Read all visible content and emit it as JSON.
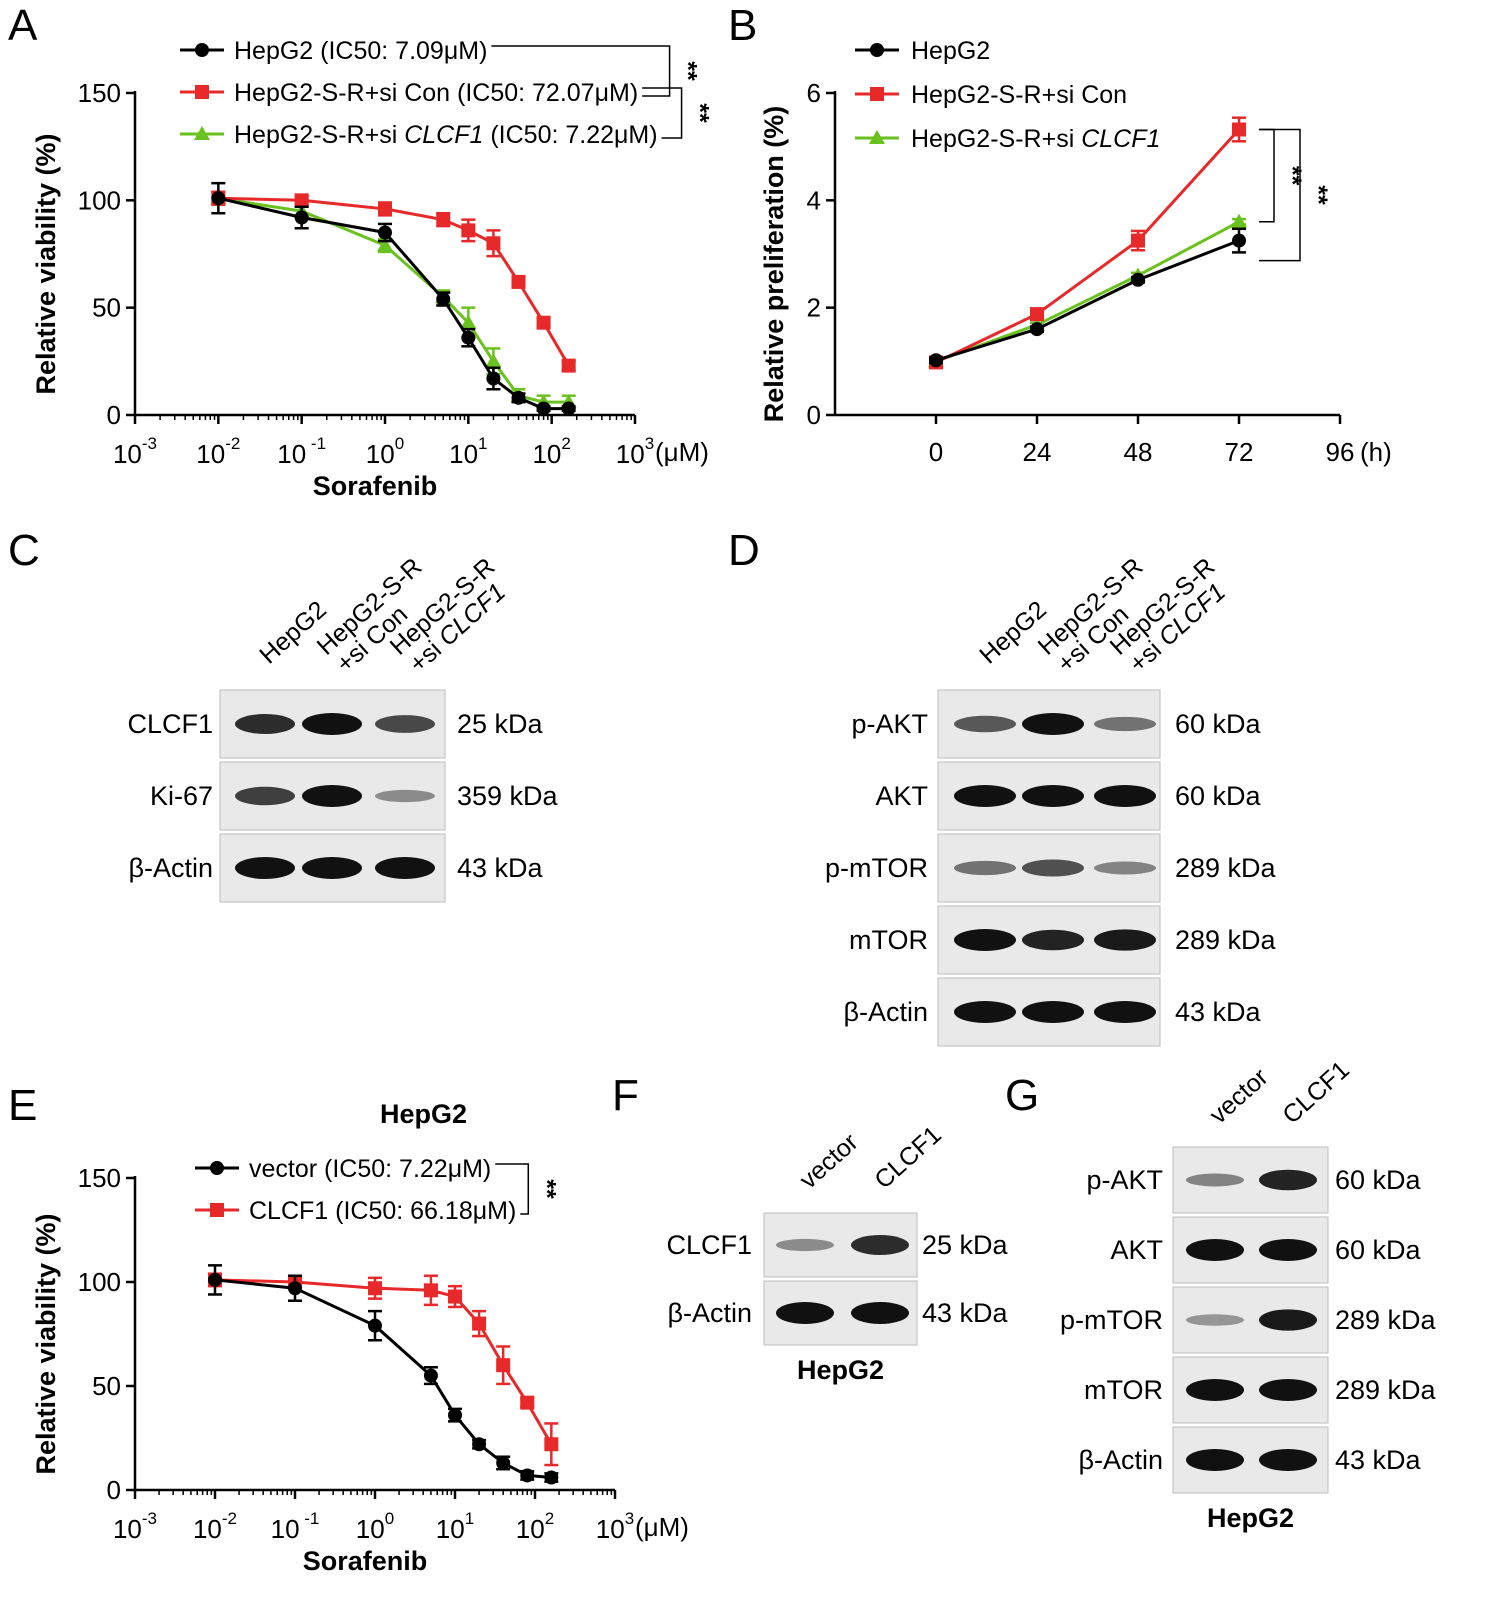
{
  "panels": [
    {
      "id": "A",
      "letter": "A"
    },
    {
      "id": "B",
      "letter": "B"
    },
    {
      "id": "C",
      "letter": "C"
    },
    {
      "id": "D",
      "letter": "D"
    },
    {
      "id": "E",
      "letter": "E"
    },
    {
      "id": "F",
      "letter": "F"
    },
    {
      "id": "G",
      "letter": "G"
    }
  ],
  "colors": {
    "black": "#000000",
    "red": "#e8292a",
    "green": "#6ac21e",
    "band": "#111111"
  },
  "chart_data": [
    {
      "id": "A",
      "type": "line",
      "x_scale": "log",
      "ylabel": "Relative viability (%)",
      "xlabel": "Sorafenib",
      "x_unit": "(μM)",
      "x_ticks": [
        {
          "base": "10",
          "exp": "-3"
        },
        {
          "base": "10",
          "exp": "-2"
        },
        {
          "base": "10",
          "exp": " -1"
        },
        {
          "base": "10",
          "exp": "0"
        },
        {
          "base": "10",
          "exp": "1"
        },
        {
          "base": "10",
          "exp": "2"
        },
        {
          "base": "10",
          "exp": "3"
        }
      ],
      "y_ticks": [
        "0",
        "50",
        "100",
        "150"
      ],
      "xlim_log10": [
        -3,
        3
      ],
      "ylim": [
        0,
        150
      ],
      "series": [
        {
          "name": "HepG2",
          "legend_pre": "HepG2 (IC50: 7.09μM)",
          "legend_italic": "",
          "legend_post": "",
          "color": "#000000",
          "marker": "circle",
          "x": [
            0.01,
            0.1,
            1,
            5,
            10,
            20,
            40,
            80,
            160
          ],
          "y": [
            101,
            92,
            85,
            54,
            36,
            17,
            8,
            3,
            3
          ],
          "err": [
            7,
            5,
            4,
            3,
            4,
            5,
            2,
            1,
            1
          ]
        },
        {
          "name": "HepG2-S-R+si Con",
          "legend_pre": "HepG2-S-R+si Con (IC50: 72.07μM)",
          "legend_italic": "",
          "legend_post": "",
          "color": "#e8292a",
          "marker": "square",
          "x": [
            0.01,
            0.1,
            1,
            5,
            10,
            20,
            40,
            80,
            160
          ],
          "y": [
            101,
            100,
            96,
            91,
            86,
            80,
            62,
            43,
            23
          ],
          "err": [
            3,
            2,
            3,
            3,
            5,
            6,
            2,
            2,
            2
          ]
        },
        {
          "name": "HepG2-S-R+si CLCF1",
          "legend_pre": "HepG2-S-R+si ",
          "legend_italic": "CLCF1",
          "legend_post": " (IC50: 7.22μM)",
          "color": "#6ac21e",
          "marker": "triangle",
          "x": [
            0.01,
            0.1,
            1,
            5,
            10,
            20,
            40,
            80,
            160
          ],
          "y": [
            101,
            95,
            79,
            55,
            43,
            25,
            9,
            6,
            6
          ],
          "err": [
            3,
            3,
            3,
            3,
            7,
            6,
            3,
            3,
            3
          ]
        }
      ],
      "significance": [
        {
          "between": [
            "HepG2",
            "HepG2-S-R+si Con"
          ],
          "label": "**"
        },
        {
          "between": [
            "HepG2-S-R+si Con",
            "HepG2-S-R+si CLCF1"
          ],
          "label": "**"
        }
      ]
    },
    {
      "id": "B",
      "type": "line",
      "ylabel": "Relative preliferation (%)",
      "x_unit": "(h)",
      "x_ticks": [
        "0",
        "24",
        "48",
        "72",
        "96"
      ],
      "y_ticks": [
        "0",
        "2",
        "4",
        "6"
      ],
      "xlim": [
        -24,
        96
      ],
      "ylim": [
        0,
        6
      ],
      "series": [
        {
          "name": "HepG2",
          "legend_pre": "HepG2",
          "legend_italic": "",
          "legend_post": "",
          "color": "#000000",
          "marker": "circle",
          "x": [
            0,
            24,
            48,
            72
          ],
          "y": [
            1.02,
            1.6,
            2.52,
            3.25
          ],
          "err": [
            0.05,
            0.05,
            0.05,
            0.22
          ]
        },
        {
          "name": "HepG2-S-R+si Con",
          "legend_pre": "HepG2-S-R+si Con",
          "legend_italic": "",
          "legend_post": "",
          "color": "#e8292a",
          "marker": "square",
          "x": [
            0,
            24,
            48,
            72
          ],
          "y": [
            0.98,
            1.88,
            3.25,
            5.32
          ],
          "err": [
            0.05,
            0.06,
            0.18,
            0.22
          ]
        },
        {
          "name": "HepG2-S-R+si CLCF1",
          "legend_pre": "HepG2-S-R+si ",
          "legend_italic": "CLCF1",
          "legend_post": "",
          "color": "#6ac21e",
          "marker": "triangle",
          "x": [
            0,
            24,
            48,
            72
          ],
          "y": [
            1.0,
            1.68,
            2.6,
            3.6
          ],
          "err": [
            0.04,
            0.04,
            0.05,
            0.05
          ]
        }
      ],
      "significance": [
        {
          "between": [
            "HepG2-S-R+si Con",
            "HepG2-S-R+si CLCF1"
          ],
          "label": "**"
        },
        {
          "between": [
            "HepG2-S-R+si Con",
            "HepG2"
          ],
          "label": "**"
        }
      ]
    },
    {
      "id": "E",
      "type": "line",
      "x_scale": "log",
      "title": "HepG2",
      "ylabel": "Relative viability (%)",
      "xlabel": "Sorafenib",
      "x_unit": "(μM)",
      "x_ticks": [
        {
          "base": "10",
          "exp": "-3"
        },
        {
          "base": "10",
          "exp": "-2"
        },
        {
          "base": "10",
          "exp": " -1"
        },
        {
          "base": "10",
          "exp": "0"
        },
        {
          "base": "10",
          "exp": "1"
        },
        {
          "base": "10",
          "exp": "2"
        },
        {
          "base": "10",
          "exp": "3"
        }
      ],
      "y_ticks": [
        "0",
        "50",
        "100",
        "150"
      ],
      "xlim_log10": [
        -3,
        3
      ],
      "ylim": [
        0,
        150
      ],
      "series": [
        {
          "name": "vector",
          "legend_pre": "vector (IC50: 7.22μM)",
          "legend_italic": "",
          "legend_post": "",
          "color": "#000000",
          "marker": "circle",
          "x": [
            0.01,
            0.1,
            1,
            5,
            10,
            20,
            40,
            80,
            160
          ],
          "y": [
            101,
            97,
            79,
            55,
            36,
            22,
            13,
            7,
            6
          ],
          "err": [
            7,
            6,
            7,
            4,
            3,
            2,
            3,
            2,
            2
          ]
        },
        {
          "name": "CLCF1",
          "legend_pre": "CLCF1 (IC50: 66.18μM)",
          "legend_italic": "",
          "legend_post": "",
          "color": "#e8292a",
          "marker": "square",
          "x": [
            0.01,
            0.1,
            1,
            5,
            10,
            20,
            40,
            80,
            160
          ],
          "y": [
            101,
            100,
            97,
            96,
            93,
            80,
            60,
            42,
            22
          ],
          "err": [
            3,
            3,
            5,
            7,
            5,
            6,
            9,
            2,
            10
          ]
        }
      ],
      "significance": [
        {
          "between": [
            "vector",
            "CLCF1"
          ],
          "label": "**"
        }
      ]
    }
  ],
  "blots": {
    "C": {
      "lanes": [
        {
          "lines": [
            {
              "pre": "HepG2",
              "italic": ""
            }
          ]
        },
        {
          "lines": [
            {
              "pre": "HepG2-S-R",
              "italic": ""
            },
            {
              "pre": "+si Con",
              "italic": ""
            }
          ]
        },
        {
          "lines": [
            {
              "pre": "HepG2-S-R",
              "italic": ""
            },
            {
              "pre": "+si ",
              "italic": "CLCF1"
            }
          ]
        }
      ],
      "rows": [
        {
          "label": "CLCF1",
          "kda": "25 kDa",
          "intensity": [
            0.85,
            1.0,
            0.7
          ]
        },
        {
          "label": "Ki-67",
          "kda": "359 kDa",
          "intensity": [
            0.75,
            1.0,
            0.3
          ]
        },
        {
          "label": "β-Actin",
          "kda": "43 kDa",
          "intensity": [
            1.0,
            1.0,
            1.0
          ]
        }
      ]
    },
    "D": {
      "lanes": [
        {
          "lines": [
            {
              "pre": "HepG2",
              "italic": ""
            }
          ]
        },
        {
          "lines": [
            {
              "pre": "HepG2-S-R",
              "italic": ""
            },
            {
              "pre": "+si Con",
              "italic": ""
            }
          ]
        },
        {
          "lines": [
            {
              "pre": "HepG2-S-R",
              "italic": ""
            },
            {
              "pre": "+si ",
              "italic": "CLCF1"
            }
          ]
        }
      ],
      "rows": [
        {
          "label": "p-AKT",
          "kda": "60 kDa",
          "intensity": [
            0.6,
            1.0,
            0.45
          ]
        },
        {
          "label": "AKT",
          "kda": "60 kDa",
          "intensity": [
            1.0,
            1.0,
            1.0
          ]
        },
        {
          "label": "p-mTOR",
          "kda": "289 kDa",
          "intensity": [
            0.45,
            0.65,
            0.35
          ]
        },
        {
          "label": "mTOR",
          "kda": "289 kDa",
          "intensity": [
            1.0,
            0.9,
            0.95
          ]
        },
        {
          "label": "β-Actin",
          "kda": "43 kDa",
          "intensity": [
            1.0,
            1.0,
            1.0
          ]
        }
      ]
    },
    "F": {
      "lanes": [
        {
          "lines": [
            {
              "pre": "vector",
              "italic": ""
            }
          ]
        },
        {
          "lines": [
            {
              "pre": "CLCF1",
              "italic": ""
            }
          ]
        }
      ],
      "rows": [
        {
          "label": "CLCF1",
          "kda": "25 kDa",
          "intensity": [
            0.3,
            0.85
          ]
        },
        {
          "label": "β-Actin",
          "kda": "43 kDa",
          "intensity": [
            1.0,
            1.0
          ]
        }
      ],
      "cell_line": "HepG2"
    },
    "G": {
      "lanes": [
        {
          "lines": [
            {
              "pre": "vector",
              "italic": ""
            }
          ]
        },
        {
          "lines": [
            {
              "pre": "CLCF1",
              "italic": ""
            }
          ]
        }
      ],
      "rows": [
        {
          "label": "p-AKT",
          "kda": "60 kDa",
          "intensity": [
            0.35,
            0.9
          ]
        },
        {
          "label": "AKT",
          "kda": "60 kDa",
          "intensity": [
            1.0,
            1.0
          ]
        },
        {
          "label": "p-mTOR",
          "kda": "289 kDa",
          "intensity": [
            0.25,
            0.95
          ]
        },
        {
          "label": "mTOR",
          "kda": "289 kDa",
          "intensity": [
            1.0,
            1.0
          ]
        },
        {
          "label": "β-Actin",
          "kda": "43 kDa",
          "intensity": [
            1.0,
            1.0
          ]
        }
      ],
      "cell_line": "HepG2"
    }
  }
}
